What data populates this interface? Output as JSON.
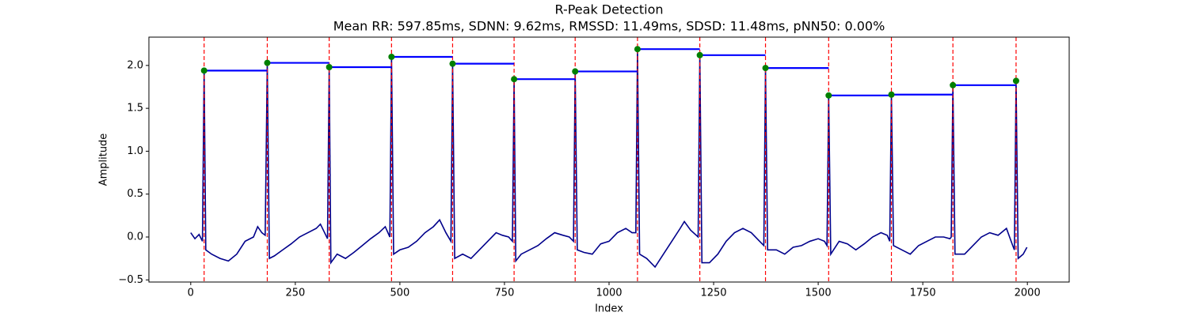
{
  "chart_data": {
    "type": "line",
    "title": "R-Peak Detection",
    "subtitle": "Mean RR: 597.85ms, SDNN: 9.62ms, RMSSD: 11.49ms, SDSD: 11.48ms, pNN50: 0.00%",
    "x_label": "Index",
    "y_label": "Amplitude",
    "xlim": [
      -100,
      2100
    ],
    "ylim": [
      -0.525,
      2.33
    ],
    "xticks": [
      0,
      250,
      500,
      750,
      1000,
      1250,
      1500,
      1750,
      2000
    ],
    "yticks": [
      {
        "value": -0.5,
        "label": "−0.5"
      },
      {
        "value": 0,
        "label": "0.0"
      },
      0.5,
      {
        "value": 1,
        "label": "1.0"
      },
      1.5,
      {
        "value": 2,
        "label": "2.0"
      }
    ],
    "series": [
      {
        "color": "#00008b",
        "x": [
          0,
          10,
          20,
          28,
          32,
          36,
          50,
          70,
          90,
          110,
          130,
          150,
          160,
          170,
          178,
          183,
          188,
          200,
          220,
          240,
          260,
          280,
          300,
          310,
          320,
          327,
          331,
          335,
          350,
          370,
          390,
          410,
          430,
          450,
          465,
          476,
          480,
          485,
          500,
          520,
          540,
          560,
          580,
          595,
          610,
          622,
          626,
          631,
          650,
          670,
          690,
          710,
          730,
          745,
          760,
          769,
          773,
          777,
          790,
          810,
          830,
          850,
          870,
          890,
          905,
          915,
          919,
          924,
          940,
          960,
          980,
          1000,
          1020,
          1040,
          1055,
          1064,
          1068,
          1073,
          1090,
          1110,
          1130,
          1150,
          1170,
          1180,
          1195,
          1213,
          1217,
          1222,
          1240,
          1260,
          1280,
          1300,
          1320,
          1340,
          1360,
          1370,
          1374,
          1379,
          1400,
          1420,
          1440,
          1460,
          1480,
          1500,
          1515,
          1521,
          1525,
          1530,
          1550,
          1570,
          1590,
          1610,
          1630,
          1650,
          1665,
          1671,
          1675,
          1680,
          1700,
          1720,
          1740,
          1760,
          1780,
          1800,
          1815,
          1818,
          1822,
          1827,
          1850,
          1870,
          1890,
          1910,
          1930,
          1950,
          1965,
          1969,
          1973,
          1978,
          1990,
          1999
        ],
        "values": [
          0.05,
          -0.02,
          0.03,
          -0.05,
          1.94,
          -0.15,
          -0.2,
          -0.25,
          -0.28,
          -0.2,
          -0.05,
          0.0,
          0.12,
          0.05,
          0.02,
          2.03,
          -0.25,
          -0.22,
          -0.15,
          -0.08,
          0.0,
          0.05,
          0.1,
          0.15,
          0.05,
          -0.02,
          1.98,
          -0.3,
          -0.2,
          -0.25,
          -0.18,
          -0.1,
          -0.02,
          0.05,
          0.12,
          0.0,
          2.1,
          -0.2,
          -0.15,
          -0.12,
          -0.05,
          0.05,
          0.12,
          0.2,
          0.05,
          -0.05,
          2.02,
          -0.25,
          -0.2,
          -0.25,
          -0.15,
          -0.05,
          0.05,
          0.02,
          0.0,
          -0.05,
          1.84,
          -0.28,
          -0.2,
          -0.15,
          -0.1,
          -0.02,
          0.05,
          0.02,
          0.0,
          -0.05,
          1.93,
          -0.15,
          -0.18,
          -0.2,
          -0.08,
          -0.05,
          0.05,
          0.1,
          0.05,
          0.05,
          2.19,
          -0.2,
          -0.25,
          -0.35,
          -0.2,
          -0.05,
          0.1,
          0.18,
          0.08,
          0.0,
          2.12,
          -0.3,
          -0.3,
          -0.2,
          -0.05,
          0.05,
          0.1,
          0.05,
          -0.05,
          -0.1,
          1.97,
          -0.15,
          -0.15,
          -0.2,
          -0.12,
          -0.1,
          -0.05,
          -0.02,
          -0.05,
          -0.1,
          1.65,
          -0.2,
          -0.05,
          -0.08,
          -0.15,
          -0.08,
          0.0,
          0.05,
          0.02,
          -0.05,
          1.66,
          -0.1,
          -0.15,
          -0.2,
          -0.1,
          -0.05,
          0.0,
          0.0,
          -0.02,
          0.0,
          1.77,
          -0.2,
          -0.2,
          -0.1,
          0.0,
          0.05,
          0.02,
          0.1,
          -0.1,
          -0.15,
          1.82,
          -0.25,
          -0.2,
          -0.12
        ]
      }
    ],
    "peaks": {
      "color": "green",
      "line_color": "red",
      "rr_color": "blue",
      "x": [
        32,
        183,
        331,
        480,
        626,
        773,
        919,
        1068,
        1217,
        1374,
        1525,
        1675,
        1822,
        1973
      ],
      "values": [
        1.94,
        2.03,
        1.98,
        2.1,
        2.02,
        1.84,
        1.93,
        2.19,
        2.12,
        1.97,
        1.65,
        1.66,
        1.77,
        1.82
      ]
    }
  }
}
